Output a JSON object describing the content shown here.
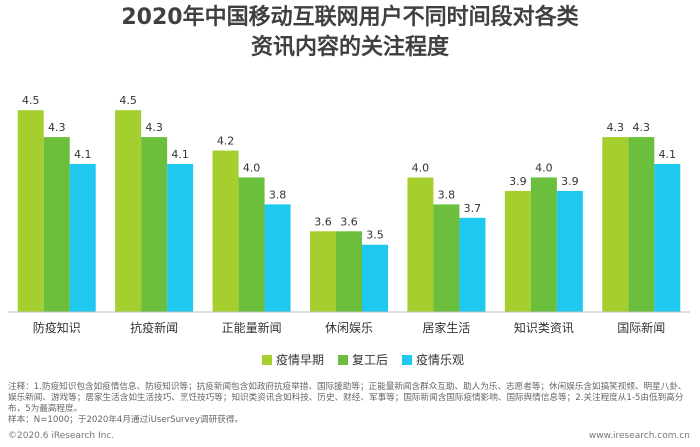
{
  "title_line1": "2020年中国移动互联网用户不同时间段对各类",
  "title_line2": "资讯内容的关注程度",
  "chart_data": {
    "type": "bar",
    "categories": [
      "防疫知识",
      "抗疫新闻",
      "正能量新闻",
      "休闲娱乐",
      "居家生活",
      "知识类资讯",
      "国际新闻"
    ],
    "series": [
      {
        "name": "疫情早期",
        "values": [
          4.5,
          4.5,
          4.2,
          3.6,
          4.0,
          3.9,
          4.3
        ],
        "color": "#a4cf2e"
      },
      {
        "name": "复工后",
        "values": [
          4.3,
          4.3,
          4.0,
          3.6,
          3.8,
          4.0,
          4.3
        ],
        "color": "#6cbf3c"
      },
      {
        "name": "疫情乐观",
        "values": [
          4.1,
          4.1,
          3.8,
          3.5,
          3.7,
          3.9,
          4.1
        ],
        "color": "#1ec8ee"
      }
    ],
    "ylim": [
      3.0,
      4.65
    ],
    "legend_position": "bottom-center",
    "grid": false
  },
  "note_text": "注释：1.防疫知识包含如疫情信息、防疫知识等；抗疫新闻包含如政府抗疫举措、国际援助等；正能量新闻含群众互助、助人为乐、志愿者等；休闲娱乐含如搞笑视频、明星八卦、娱乐新闻、游戏等；居家生活含如生活技巧、烹饪技巧等；知识类资讯含如科技、历史、财经、军事等；国际新闻含国际疫情影响、国际舆情信息等；2.关注程度从1-5由低到高分布，5为最高程度。",
  "sample_text": "样本：N=1000；于2020年4月通过iUserSurvey调研获得。",
  "footer_left": "©2020.6 iResearch Inc.",
  "footer_right": "www.iresearch.com.cn"
}
